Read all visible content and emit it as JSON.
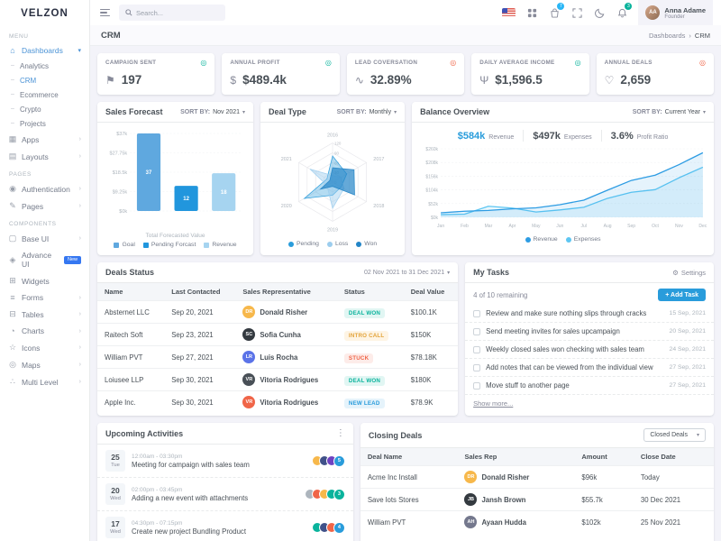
{
  "brand": {
    "logo": "VELZON"
  },
  "topbar": {
    "search_placeholder": "Search...",
    "cart_count": "7",
    "notif_count": "3",
    "user": {
      "name": "Anna Adame",
      "role": "Founder",
      "initials": "AA"
    }
  },
  "breadcrumb": {
    "title": "CRM",
    "parent": "Dashboards",
    "separator": "›",
    "current": "CRM"
  },
  "sidebar": {
    "sections": [
      {
        "label": "MENU",
        "items": [
          {
            "label": "Dashboards",
            "icon": "dashboards-icon",
            "glyph": "⌂",
            "active": true,
            "chevron": "▾",
            "children": [
              {
                "label": "Analytics"
              },
              {
                "label": "CRM",
                "active": true
              },
              {
                "label": "Ecommerce"
              },
              {
                "label": "Crypto"
              },
              {
                "label": "Projects"
              }
            ]
          },
          {
            "label": "Apps",
            "icon": "apps-icon",
            "glyph": "▦",
            "chevron": "›"
          },
          {
            "label": "Layouts",
            "icon": "layouts-icon",
            "glyph": "▤",
            "chevron": "›"
          }
        ]
      },
      {
        "label": "PAGES",
        "items": [
          {
            "label": "Authentication",
            "icon": "authentication-icon",
            "glyph": "◉",
            "chevron": "›"
          },
          {
            "label": "Pages",
            "icon": "pages-icon",
            "glyph": "✎",
            "chevron": "›"
          }
        ]
      },
      {
        "label": "COMPONENTS",
        "items": [
          {
            "label": "Base UI",
            "icon": "base-ui-icon",
            "glyph": "▢",
            "chevron": "›"
          },
          {
            "label": "Advance UI",
            "icon": "advance-ui-icon",
            "glyph": "◈",
            "badge": "New"
          },
          {
            "label": "Widgets",
            "icon": "widgets-icon",
            "glyph": "⊞"
          },
          {
            "label": "Forms",
            "icon": "forms-icon",
            "glyph": "≡",
            "chevron": "›"
          },
          {
            "label": "Tables",
            "icon": "tables-icon",
            "glyph": "⊟",
            "chevron": "›"
          },
          {
            "label": "Charts",
            "icon": "charts-icon",
            "glyph": "◔",
            "chevron": "›"
          },
          {
            "label": "Icons",
            "icon": "icons-icon",
            "glyph": "☆",
            "chevron": "›"
          },
          {
            "label": "Maps",
            "icon": "maps-icon",
            "glyph": "◎",
            "chevron": "›"
          },
          {
            "label": "Multi Level",
            "icon": "multi-level-icon",
            "glyph": "∴",
            "chevron": "›"
          }
        ]
      }
    ]
  },
  "stats": [
    {
      "label": "CAMPAIGN SENT",
      "value": "197",
      "icon": "campaign-icon",
      "glyph": "⚑",
      "trend": "green"
    },
    {
      "label": "ANNUAL PROFIT",
      "value": "$489.4k",
      "icon": "profit-icon",
      "glyph": "$",
      "trend": "green"
    },
    {
      "label": "LEAD COVERSATION",
      "value": "32.89%",
      "icon": "pulse-icon",
      "glyph": "∿",
      "trend": "red"
    },
    {
      "label": "DAILY AVERAGE INCOME",
      "value": "$1,596.5",
      "icon": "trophy-icon",
      "glyph": "Ψ",
      "trend": "green"
    },
    {
      "label": "ANNUAL DEALS",
      "value": "2,659",
      "icon": "deals-icon",
      "glyph": "♡",
      "trend": "red"
    }
  ],
  "cards": {
    "sales_forecast": {
      "title": "Sales Forecast",
      "sort_label": "SORT BY:",
      "sort_value": "Nov 2021",
      "xlabel": "Total Forecasted Value"
    },
    "deal_type": {
      "title": "Deal Type",
      "sort_label": "SORT BY:",
      "sort_value": "Monthly"
    },
    "balance_overview": {
      "title": "Balance Overview",
      "sort_label": "SORT BY:",
      "sort_value": "Current Year",
      "stats": [
        {
          "value": "$584k",
          "label": "Revenue",
          "color": "#299cdb"
        },
        {
          "value": "$497k",
          "label": "Expenses",
          "color": "#495057"
        },
        {
          "value": "3.6%",
          "label": "Profit Ratio",
          "color": "#495057"
        }
      ]
    }
  },
  "chart_data": [
    {
      "id": "sales_forecast",
      "type": "bar",
      "categories": [
        "Goal",
        "Pending Forcast",
        "Revenue"
      ],
      "values": [
        37,
        12,
        18
      ],
      "bar_labels": [
        "37",
        "12",
        "18"
      ],
      "colors": [
        "#5fa8df",
        "#2196dd",
        "#a6d4f0"
      ],
      "yticks": [
        "$0k",
        "$9.25k",
        "$18.5k",
        "$27.75k",
        "$37k"
      ],
      "ymax": 37,
      "title": "Sales Forecast",
      "xlabel": "Total Forecasted Value",
      "ylabel": "",
      "grid": true,
      "legend_position": "bottom"
    },
    {
      "id": "deal_type",
      "type": "radar",
      "categories": [
        "2016",
        "2017",
        "2018",
        "2019",
        "2020",
        "2021"
      ],
      "rticks": [
        "0",
        "30",
        "60",
        "90",
        "120"
      ],
      "rmax": 120,
      "series": [
        {
          "name": "Pending",
          "values": [
            80,
            50,
            30,
            40,
            100,
            20
          ],
          "color": "#299cdb",
          "fill_opacity": 0.35
        },
        {
          "name": "Loss",
          "values": [
            20,
            30,
            40,
            80,
            20,
            80
          ],
          "color": "#9ccdee",
          "fill_opacity": 0.45
        },
        {
          "name": "Won",
          "values": [
            44,
            76,
            78,
            13,
            43,
            10
          ],
          "color": "#2385c7",
          "fill_opacity": 0.7
        }
      ],
      "title": "Deal Type",
      "legend_position": "bottom"
    },
    {
      "id": "balance_overview",
      "type": "line",
      "x": [
        "Jan",
        "Feb",
        "Mar",
        "Apr",
        "May",
        "Jun",
        "Jul",
        "Aug",
        "Sep",
        "Oct",
        "Nov",
        "Dec"
      ],
      "yticks": [
        "$0k",
        "$52k",
        "$104k",
        "$156k",
        "$208k",
        "$260k"
      ],
      "ymax": 260,
      "series": [
        {
          "name": "Revenue",
          "values": [
            17,
            23,
            26,
            32,
            36,
            48,
            65,
            103,
            140,
            160,
            200,
            245
          ],
          "color": "#2d9ce3"
        },
        {
          "name": "Expenses",
          "values": [
            10,
            12,
            42,
            35,
            20,
            28,
            38,
            72,
            95,
            105,
            150,
            190
          ],
          "color": "#5ec6f2"
        }
      ],
      "title": "Balance Overview",
      "grid": true,
      "legend_position": "bottom"
    }
  ],
  "deals_status": {
    "title": "Deals Status",
    "date_range": "02 Nov 2021 to 31 Dec 2021",
    "columns": [
      "Name",
      "Last Contacted",
      "Sales Representative",
      "Status",
      "Deal Value"
    ],
    "rows": [
      {
        "name": "Absternet LLC",
        "last_contacted": "Sep 20, 2021",
        "rep": {
          "name": "Donald Risher",
          "initials": "DR",
          "color": "#f7b84b"
        },
        "status": {
          "label": "Deal Won",
          "type": "success"
        },
        "value": "$100.1K"
      },
      {
        "name": "Raitech Soft",
        "last_contacted": "Sep 23, 2021",
        "rep": {
          "name": "Sofia Cunha",
          "initials": "SC",
          "color": "#343a40"
        },
        "status": {
          "label": "Intro Call",
          "type": "warning"
        },
        "value": "$150K"
      },
      {
        "name": "William PVT",
        "last_contacted": "Sep 27, 2021",
        "rep": {
          "name": "Luis Rocha",
          "initials": "LR",
          "color": "#5b73e8"
        },
        "status": {
          "label": "Stuck",
          "type": "danger"
        },
        "value": "$78.18K"
      },
      {
        "name": "Loiusee LLP",
        "last_contacted": "Sep 30, 2021",
        "rep": {
          "name": "Vitoria Rodrigues",
          "initials": "VR",
          "color": "#495057"
        },
        "status": {
          "label": "Deal Won",
          "type": "success"
        },
        "value": "$180K"
      },
      {
        "name": "Apple Inc.",
        "last_contacted": "Sep 30, 2021",
        "rep": {
          "name": "Vitoria Rodrigues",
          "initials": "VR",
          "color": "#f06548"
        },
        "status": {
          "label": "New Lead",
          "type": "info"
        },
        "value": "$78.9K"
      }
    ]
  },
  "my_tasks": {
    "title": "My Tasks",
    "settings_label": "Settings",
    "remaining": "4 of 10 remaining",
    "add_task_label": "+ Add Task",
    "show_more": "Show more...",
    "tasks": [
      {
        "text": "Review and make sure nothing slips through cracks",
        "date": "15 Sep, 2021"
      },
      {
        "text": "Send meeting invites for sales upcampaign",
        "date": "20 Sep, 2021"
      },
      {
        "text": "Weekly closed sales won checking with sales team",
        "date": "24 Sep, 2021"
      },
      {
        "text": "Add notes that can be viewed from the individual view",
        "date": "27 Sep, 2021"
      },
      {
        "text": "Move stuff to another page",
        "date": "27 Sep, 2021"
      }
    ]
  },
  "upcoming_activities": {
    "title": "Upcoming Activities",
    "items": [
      {
        "day": "25",
        "weekday": "Tue",
        "time": "12:00am - 03:30pm",
        "title": "Meeting for campaign with sales team",
        "avatars": [
          "#f7b84b",
          "#405189",
          "#6f42c1"
        ],
        "more": "5",
        "more_type": "info"
      },
      {
        "day": "20",
        "weekday": "Wed",
        "time": "02:00pm - 03:45pm",
        "title": "Adding a new event with attachments",
        "avatars": [
          "#adb5bd",
          "#f06548",
          "#f7b84b",
          "#0ab39c"
        ],
        "more": "3",
        "more_type": "success"
      },
      {
        "day": "17",
        "weekday": "Wed",
        "time": "04:30pm - 07:15pm",
        "title": "Create new project Bundling Product",
        "avatars": [
          "#0ab39c",
          "#405189",
          "#f06548"
        ],
        "more": "4",
        "more_type": "info"
      }
    ]
  },
  "closing_deals": {
    "title": "Closing Deals",
    "filter_value": "Closed Deals",
    "columns": [
      "Deal Name",
      "Sales Rep",
      "Amount",
      "Close Date"
    ],
    "rows": [
      {
        "deal": "Acme Inc Install",
        "rep": {
          "name": "Donald Risher",
          "initials": "DR",
          "color": "#f7b84b"
        },
        "amount": "$96k",
        "close": "Today"
      },
      {
        "deal": "Save lots Stores",
        "rep": {
          "name": "Jansh Brown",
          "initials": "JB",
          "color": "#343a40"
        },
        "amount": "$55.7k",
        "close": "30 Dec 2021"
      },
      {
        "deal": "William PVT",
        "rep": {
          "name": "Ayaan Hudda",
          "initials": "AH",
          "color": "#74788d"
        },
        "amount": "$102k",
        "close": "25 Nov 2021"
      }
    ]
  },
  "colors": {
    "accent": "#299cdb",
    "success": "#0ab39c",
    "danger": "#f06548",
    "warning": "#f7b84b",
    "sidebar_active": "#4b93d6"
  }
}
